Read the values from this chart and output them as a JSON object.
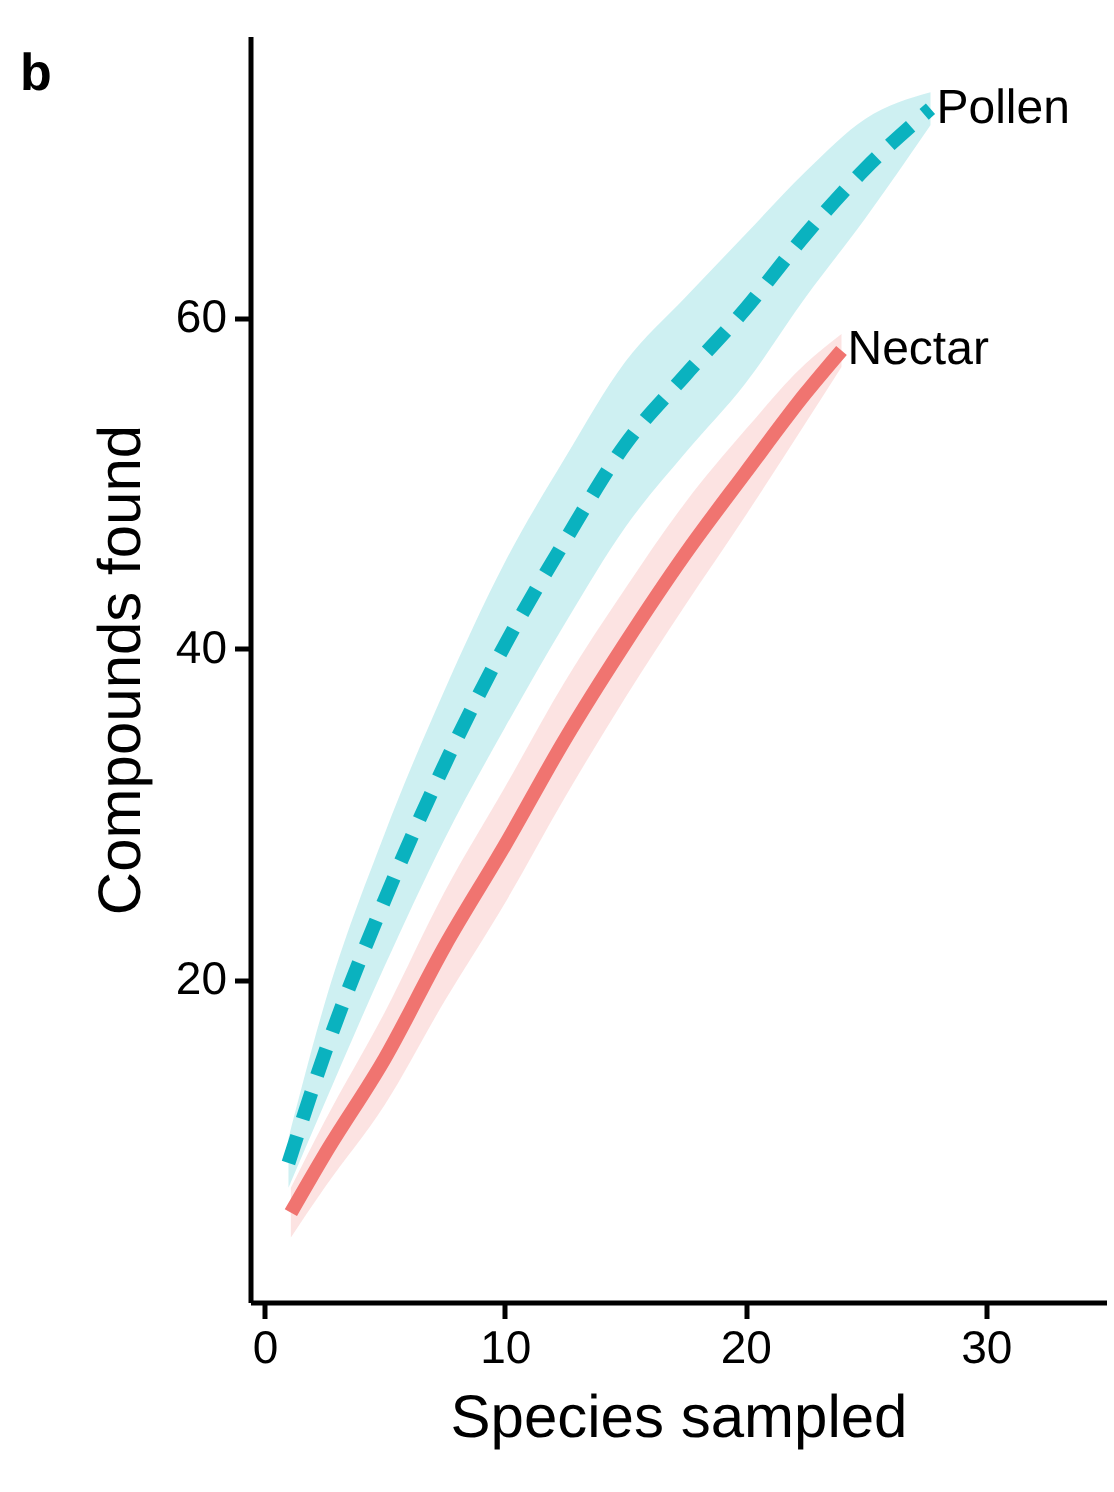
{
  "chart_data": {
    "type": "line",
    "title": "b",
    "xlabel": "Species sampled",
    "ylabel": "Compounds found",
    "xlim": [
      -0.6,
      35
    ],
    "ylim": [
      0.5,
      77
    ],
    "xticks": [
      0,
      10,
      20,
      30
    ],
    "yticks": [
      20,
      40,
      60
    ],
    "grid": false,
    "marker": "none",
    "series": [
      {
        "name": "Pollen",
        "color": "#0ab2bf",
        "line_style": "dashed",
        "x": [
          1,
          2.5,
          5,
          7.5,
          10,
          12.5,
          15,
          17.5,
          20,
          22.5,
          25,
          27.7
        ],
        "values": [
          8.9,
          15.5,
          24.8,
          33,
          40.2,
          46.5,
          52.3,
          56.5,
          60.5,
          65,
          69,
          72.6
        ],
        "lower": [
          7.4,
          12.5,
          20.8,
          28.5,
          35.2,
          41.5,
          47.3,
          51.8,
          56,
          61.2,
          66,
          71.6
        ],
        "upper": [
          10.4,
          18.5,
          28.8,
          37.5,
          45.2,
          51.5,
          57.3,
          61.2,
          65,
          68.8,
          72,
          73.6
        ]
      },
      {
        "name": "Nectar",
        "color": "#f07470",
        "line_style": "solid",
        "x": [
          1.1,
          2.5,
          5,
          7.5,
          10,
          12.5,
          15,
          17.5,
          20,
          22.5,
          24
        ],
        "values": [
          5.9,
          9.4,
          15.2,
          22,
          28.1,
          34.5,
          40.3,
          45.7,
          50.6,
          55.4,
          58
        ],
        "lower": [
          4.4,
          7.4,
          12.4,
          18.7,
          24.6,
          31,
          37,
          42.6,
          48,
          53.6,
          57
        ],
        "upper": [
          7.4,
          11.4,
          18,
          25.3,
          31.6,
          38,
          43.6,
          48.8,
          53.2,
          57.2,
          59
        ]
      }
    ]
  }
}
